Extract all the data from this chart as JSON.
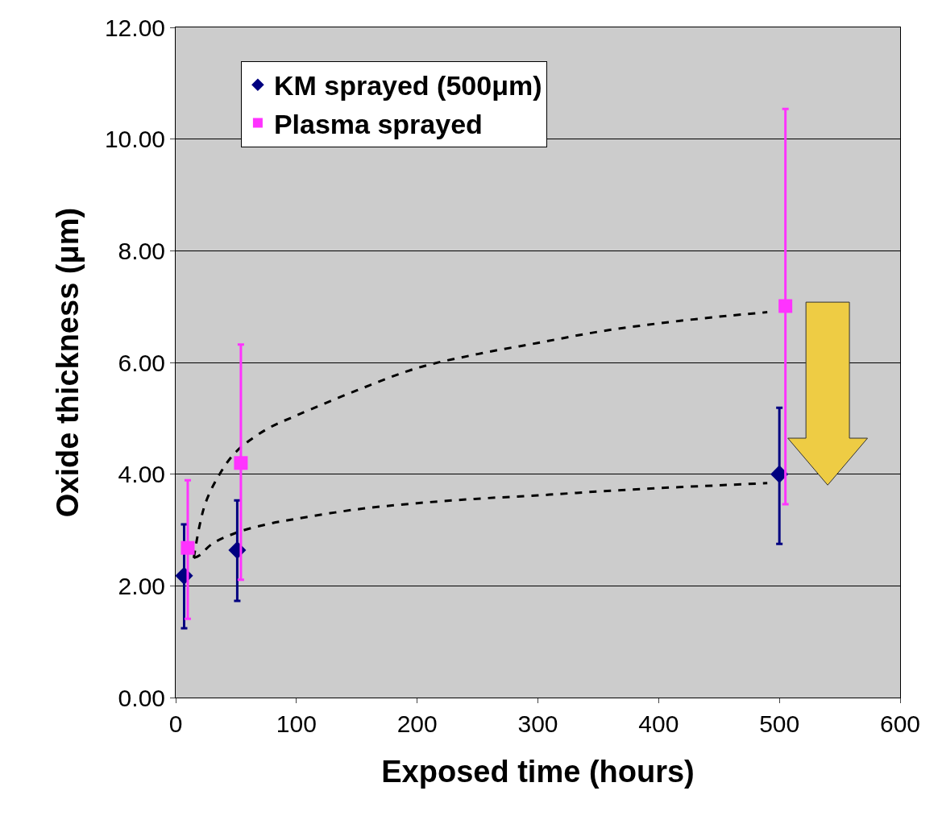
{
  "chart_data": {
    "type": "scatter",
    "xlabel": "Exposed time (hours)",
    "ylabel": "Oxide thickness (μm)",
    "xlim": [
      0,
      600
    ],
    "xticks": [
      0,
      100,
      200,
      300,
      400,
      500,
      600
    ],
    "ylim": [
      0,
      12
    ],
    "yticks": [
      {
        "value": 0,
        "label": "0.00"
      },
      {
        "value": 2,
        "label": "2.00"
      },
      {
        "value": 4,
        "label": "4.00"
      },
      {
        "value": 6,
        "label": "6.00"
      },
      {
        "value": 8,
        "label": "8.00"
      },
      {
        "value": 10,
        "label": "10.00"
      },
      {
        "value": 12,
        "label": "12.00"
      }
    ],
    "grid": "y",
    "legend": "top left",
    "series": [
      {
        "name": "KM sprayed (500μm)",
        "marker": "diamond",
        "color": "#000080",
        "x": [
          7,
          51,
          500
        ],
        "values": [
          2.18,
          2.64,
          4.0
        ],
        "errors": [
          [
            1.24,
            3.1
          ],
          [
            1.73,
            3.53
          ],
          [
            2.75,
            5.19
          ]
        ]
      },
      {
        "name": "Plasma sprayed",
        "marker": "square",
        "color": "#ff33ff",
        "x": [
          10,
          54,
          505
        ],
        "values": [
          2.68,
          4.2,
          7.01
        ],
        "errors": [
          [
            1.41,
            3.89
          ],
          [
            2.11,
            6.32
          ],
          [
            3.46,
            10.54
          ]
        ]
      },
      {
        "type": "line",
        "line_style": "dashed",
        "color": "#000000",
        "x": [
          15,
          20,
          30,
          50,
          75,
          100,
          150,
          200,
          250,
          300,
          350,
          400,
          450,
          490
        ],
        "values": [
          2.5,
          2.55,
          2.75,
          2.95,
          3.1,
          3.2,
          3.37,
          3.48,
          3.56,
          3.62,
          3.69,
          3.75,
          3.8,
          3.84
        ]
      },
      {
        "type": "line",
        "line_style": "dashed",
        "color": "#000000",
        "x": [
          15,
          20,
          25,
          35,
          50,
          75,
          100,
          150,
          200,
          250,
          300,
          350,
          400,
          450,
          490
        ],
        "values": [
          2.5,
          3.1,
          3.5,
          3.95,
          4.4,
          4.8,
          5.05,
          5.5,
          5.9,
          6.15,
          6.35,
          6.55,
          6.7,
          6.82,
          6.9
        ]
      }
    ]
  }
}
